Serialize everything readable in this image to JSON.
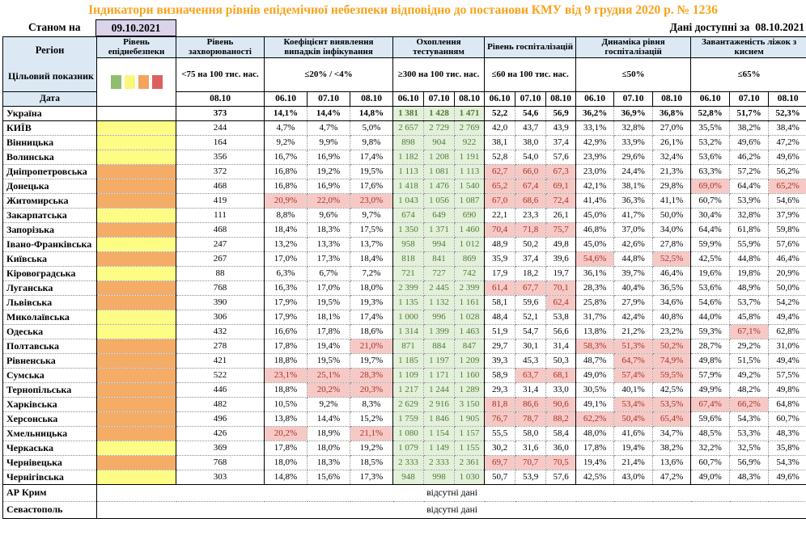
{
  "title": "Індикатори визначення рівнів епідемічної небезпеки відповідно до постанови КМУ від 9 грудня 2020 р. № 1236",
  "as_of_label": "Станом на",
  "as_of_date": "09.10.2021",
  "available_label": "Дані доступні за",
  "available_date": "08.10.2021",
  "colors": {
    "header_bg": "#DCE9F5",
    "title_color": "#F9A21B",
    "level_yellow": "#FDFC84",
    "level_orange": "#F4AC66",
    "green_bg": "#E3F0DA",
    "green_text": "#4E7A35",
    "red_bg": "#F6C9C6",
    "red_text": "#A93226",
    "date_box_bg": "#DAD3EA",
    "legend": [
      "#8FBE70",
      "#FAF77D",
      "#F2A45C",
      "#DE5F5F"
    ]
  },
  "header": {
    "region_label": "Регіон",
    "target_label": "Цільовий показник",
    "date_label": "Дата",
    "level_title": "Рівень епіднебезпеки",
    "groups": [
      {
        "title": "Рівень захворюваності",
        "target": "<75 на 100 тис. нас.",
        "dates": [
          "08.10"
        ]
      },
      {
        "title": "Коефіцієнт виявлення випадків інфікування",
        "target": "≤20% / <4%",
        "dates": [
          "06.10",
          "07.10",
          "08.10"
        ]
      },
      {
        "title": "Охоплення тестуванням",
        "target": "≥300 на 100 тис. нас.",
        "dates": [
          "06.10",
          "07.10",
          "08.10"
        ]
      },
      {
        "title": "Рівень госпіталізацій",
        "target": "≤60 на 100 тис. нас.",
        "dates": [
          "06.10",
          "07.10",
          "08.10"
        ]
      },
      {
        "title": "Динаміка рівня госпіталізацій",
        "target": "≤50%",
        "dates": [
          "06.10",
          "07.10",
          "08.10"
        ]
      },
      {
        "title": "Завантаженість ліжок з киснем",
        "target": "≤65%",
        "dates": [
          "06.10",
          "07.10",
          "08.10"
        ]
      }
    ]
  },
  "rows": [
    {
      "region": "Україна",
      "level": null,
      "bold": true,
      "incidence": "373",
      "detection": [
        "14,1%",
        "14,4%",
        "14,8%"
      ],
      "testing": [
        "1 381",
        "1 428",
        "1 471"
      ],
      "hosp": [
        "52,2",
        "54,6",
        "56,9"
      ],
      "dynamics": [
        "36,2%",
        "36,9%",
        "36,8%"
      ],
      "beds": [
        "52,8%",
        "51,7%",
        "52,3%"
      ]
    },
    {
      "region": "КИЇВ",
      "level": "yellow",
      "incidence": "244",
      "detection": [
        "4,7%",
        "4,7%",
        "5,0%"
      ],
      "testing": [
        "2 657",
        "2 729",
        "2 769"
      ],
      "hosp": [
        "42,0",
        "43,7",
        "43,9"
      ],
      "dynamics": [
        "33,1%",
        "32,8%",
        "27,0%"
      ],
      "beds": [
        "35,5%",
        "38,2%",
        "38,4%"
      ]
    },
    {
      "region": "Вінницька",
      "level": "yellow",
      "incidence": "164",
      "detection": [
        "9,2%",
        "9,9%",
        "9,8%"
      ],
      "testing": [
        "898",
        "904",
        "922"
      ],
      "hosp": [
        "38,1",
        "38,0",
        "37,4"
      ],
      "dynamics": [
        "42,9%",
        "33,9%",
        "26,1%"
      ],
      "beds": [
        "53,2%",
        "49,6%",
        "47,2%"
      ]
    },
    {
      "region": "Волинська",
      "level": "yellow",
      "incidence": "356",
      "detection": [
        "16,7%",
        "16,9%",
        "17,4%"
      ],
      "testing": [
        "1 182",
        "1 208",
        "1 191"
      ],
      "hosp": [
        "52,8",
        "54,0",
        "57,6"
      ],
      "dynamics": [
        "23,9%",
        "29,6%",
        "32,4%"
      ],
      "beds": [
        "53,6%",
        "46,2%",
        "49,6%"
      ]
    },
    {
      "region": "Дніпропетровська",
      "level": "orange",
      "incidence": "372",
      "detection": [
        "16,8%",
        "19,2%",
        "19,5%"
      ],
      "testing": [
        "1 113",
        "1 081",
        "1 113"
      ],
      "hosp": [
        "62,7",
        "66,0",
        "67,3"
      ],
      "hosp_red": [
        1,
        1,
        1
      ],
      "dynamics": [
        "23,0%",
        "24,4%",
        "21,3%"
      ],
      "beds": [
        "63,3%",
        "57,2%",
        "56,2%"
      ]
    },
    {
      "region": "Донецька",
      "level": "orange",
      "incidence": "468",
      "detection": [
        "16,8%",
        "16,9%",
        "17,6%"
      ],
      "testing": [
        "1 418",
        "1 476",
        "1 540"
      ],
      "hosp": [
        "65,2",
        "67,4",
        "69,1"
      ],
      "hosp_red": [
        1,
        1,
        1
      ],
      "dynamics": [
        "42,1%",
        "38,1%",
        "29,8%"
      ],
      "beds": [
        "69,0%",
        "64,4%",
        "65,2%"
      ],
      "beds_red": [
        1,
        0,
        1
      ]
    },
    {
      "region": "Житомирська",
      "level": "orange",
      "incidence": "419",
      "detection": [
        "20,9%",
        "22,0%",
        "23,0%"
      ],
      "detection_red": [
        1,
        1,
        1
      ],
      "testing": [
        "1 043",
        "1 056",
        "1 087"
      ],
      "hosp": [
        "67,0",
        "68,6",
        "72,4"
      ],
      "hosp_red": [
        1,
        1,
        1
      ],
      "dynamics": [
        "41,4%",
        "36,3%",
        "41,1%"
      ],
      "beds": [
        "60,7%",
        "53,9%",
        "54,6%"
      ]
    },
    {
      "region": "Закарпатська",
      "level": "yellow",
      "incidence": "111",
      "detection": [
        "8,8%",
        "9,6%",
        "9,7%"
      ],
      "testing": [
        "674",
        "649",
        "690"
      ],
      "hosp": [
        "22,1",
        "23,3",
        "26,1"
      ],
      "dynamics": [
        "45,0%",
        "41,7%",
        "50,0%"
      ],
      "beds": [
        "30,4%",
        "32,8%",
        "37,9%"
      ]
    },
    {
      "region": "Запорізька",
      "level": "orange",
      "incidence": "468",
      "detection": [
        "18,4%",
        "18,3%",
        "17,5%"
      ],
      "testing": [
        "1 350",
        "1 371",
        "1 460"
      ],
      "hosp": [
        "70,4",
        "71,8",
        "75,7"
      ],
      "hosp_red": [
        1,
        1,
        1
      ],
      "dynamics": [
        "46,8%",
        "37,0%",
        "34,0%"
      ],
      "beds": [
        "64,4%",
        "61,8%",
        "59,8%"
      ]
    },
    {
      "region": "Івано-Франківська",
      "level": "yellow",
      "tall": true,
      "incidence": "247",
      "detection": [
        "13,2%",
        "13,3%",
        "13,7%"
      ],
      "testing": [
        "958",
        "994",
        "1 012"
      ],
      "hosp": [
        "48,9",
        "50,2",
        "49,8"
      ],
      "dynamics": [
        "45,0%",
        "42,6%",
        "27,8%"
      ],
      "beds": [
        "59,9%",
        "55,9%",
        "57,6%"
      ]
    },
    {
      "region": "Київська",
      "level": "orange",
      "incidence": "267",
      "detection": [
        "17,0%",
        "17,3%",
        "18,4%"
      ],
      "testing": [
        "818",
        "841",
        "869"
      ],
      "hosp": [
        "35,9",
        "37,4",
        "39,6"
      ],
      "dynamics": [
        "54,6%",
        "44,8%",
        "52,5%"
      ],
      "dynamics_red": [
        1,
        0,
        1
      ],
      "beds": [
        "42,5%",
        "44,8%",
        "46,4%"
      ]
    },
    {
      "region": "Кіровоградська",
      "level": "yellow",
      "incidence": "88",
      "detection": [
        "6,3%",
        "6,7%",
        "7,2%"
      ],
      "testing": [
        "721",
        "727",
        "742"
      ],
      "hosp": [
        "17,9",
        "18,2",
        "19,7"
      ],
      "dynamics": [
        "36,1%",
        "39,7%",
        "46,4%"
      ],
      "beds": [
        "19,6%",
        "19,8%",
        "20,9%"
      ]
    },
    {
      "region": "Луганська",
      "level": "orange",
      "incidence": "768",
      "detection": [
        "16,3%",
        "17,0%",
        "18,0%"
      ],
      "testing": [
        "2 399",
        "2 445",
        "2 399"
      ],
      "hosp": [
        "61,4",
        "67,7",
        "70,1"
      ],
      "hosp_red": [
        1,
        1,
        1
      ],
      "dynamics": [
        "28,3%",
        "40,4%",
        "36,5%"
      ],
      "beds": [
        "53,6%",
        "48,9%",
        "50,0%"
      ]
    },
    {
      "region": "Львівська",
      "level": "orange",
      "incidence": "390",
      "detection": [
        "17,9%",
        "19,5%",
        "19,3%"
      ],
      "testing": [
        "1 135",
        "1 132",
        "1 161"
      ],
      "hosp": [
        "58,1",
        "59,6",
        "62,4"
      ],
      "hosp_red": [
        0,
        0,
        1
      ],
      "dynamics": [
        "25,8%",
        "27,9%",
        "34,6%"
      ],
      "beds": [
        "54,6%",
        "53,7%",
        "54,2%"
      ]
    },
    {
      "region": "Миколаївська",
      "level": "yellow",
      "incidence": "306",
      "detection": [
        "17,9%",
        "18,1%",
        "17,4%"
      ],
      "testing": [
        "1 000",
        "996",
        "1 028"
      ],
      "hosp": [
        "48,4",
        "52,1",
        "53,8"
      ],
      "dynamics": [
        "31,7%",
        "42,4%",
        "40,8%"
      ],
      "beds": [
        "44,0%",
        "45,8%",
        "49,4%"
      ]
    },
    {
      "region": "Одеська",
      "level": "yellow",
      "incidence": "432",
      "detection": [
        "16,6%",
        "17,8%",
        "18,6%"
      ],
      "testing": [
        "1 314",
        "1 399",
        "1 463"
      ],
      "hosp": [
        "51,9",
        "54,7",
        "56,6"
      ],
      "dynamics": [
        "13,8%",
        "21,2%",
        "23,2%"
      ],
      "beds": [
        "59,3%",
        "67,1%",
        "62,8%"
      ],
      "beds_red": [
        0,
        1,
        0
      ]
    },
    {
      "region": "Полтавська",
      "level": "orange",
      "incidence": "278",
      "detection": [
        "17,8%",
        "19,4%",
        "21,0%"
      ],
      "detection_red": [
        0,
        0,
        1
      ],
      "testing": [
        "871",
        "884",
        "847"
      ],
      "hosp": [
        "29,7",
        "30,1",
        "31,4"
      ],
      "dynamics": [
        "58,3%",
        "51,3%",
        "50,2%"
      ],
      "dynamics_red": [
        1,
        1,
        1
      ],
      "beds": [
        "28,7%",
        "29,2%",
        "31,0%"
      ]
    },
    {
      "region": "Рівненська",
      "level": "orange",
      "incidence": "421",
      "detection": [
        "18,8%",
        "19,5%",
        "19,7%"
      ],
      "testing": [
        "1 185",
        "1 197",
        "1 209"
      ],
      "hosp": [
        "39,3",
        "45,3",
        "50,3"
      ],
      "dynamics": [
        "48,7%",
        "64,7%",
        "74,9%"
      ],
      "dynamics_red": [
        0,
        1,
        1
      ],
      "beds": [
        "49,8%",
        "51,5%",
        "49,4%"
      ]
    },
    {
      "region": "Сумська",
      "level": "orange",
      "incidence": "522",
      "detection": [
        "23,1%",
        "25,1%",
        "28,3%"
      ],
      "detection_red": [
        1,
        1,
        1
      ],
      "testing": [
        "1 109",
        "1 171",
        "1 160"
      ],
      "hosp": [
        "58,9",
        "63,7",
        "68,1"
      ],
      "hosp_red": [
        0,
        1,
        1
      ],
      "dynamics": [
        "49,0%",
        "57,4%",
        "59,5%"
      ],
      "dynamics_red": [
        0,
        1,
        1
      ],
      "beds": [
        "57,9%",
        "49,2%",
        "57,5%"
      ]
    },
    {
      "region": "Тернопільська",
      "level": "orange",
      "incidence": "446",
      "detection": [
        "18,8%",
        "20,2%",
        "20,3%"
      ],
      "detection_red": [
        0,
        1,
        1
      ],
      "testing": [
        "1 217",
        "1 244",
        "1 289"
      ],
      "hosp": [
        "29,3",
        "31,4",
        "33,0"
      ],
      "dynamics": [
        "30,5%",
        "40,1%",
        "42,5%"
      ],
      "beds": [
        "49,9%",
        "48,2%",
        "49,8%"
      ]
    },
    {
      "region": "Харківська",
      "level": "orange",
      "incidence": "482",
      "detection": [
        "10,5%",
        "9,2%",
        "8,3%"
      ],
      "testing": [
        "2 629",
        "2 916",
        "3 150"
      ],
      "hosp": [
        "81,8",
        "86,6",
        "90,6"
      ],
      "hosp_red": [
        1,
        1,
        1
      ],
      "dynamics": [
        "49,1%",
        "53,4%",
        "53,5%"
      ],
      "dynamics_red": [
        0,
        1,
        1
      ],
      "beds": [
        "67,4%",
        "66,2%",
        "64,8%"
      ],
      "beds_red": [
        1,
        1,
        0
      ]
    },
    {
      "region": "Херсонська",
      "level": "orange",
      "incidence": "496",
      "detection": [
        "13,8%",
        "14,4%",
        "15,2%"
      ],
      "testing": [
        "1 759",
        "1 846",
        "1 905"
      ],
      "hosp": [
        "76,7",
        "78,7",
        "88,2"
      ],
      "hosp_red": [
        1,
        1,
        1
      ],
      "dynamics": [
        "62,2%",
        "50,4%",
        "65,4%"
      ],
      "dynamics_red": [
        1,
        1,
        1
      ],
      "beds": [
        "59,6%",
        "54,3%",
        "60,7%"
      ]
    },
    {
      "region": "Хмельницька",
      "level": "orange",
      "incidence": "426",
      "detection": [
        "20,2%",
        "18,9%",
        "21,1%"
      ],
      "detection_red": [
        1,
        0,
        1
      ],
      "testing": [
        "1 080",
        "1 154",
        "1 157"
      ],
      "hosp": [
        "55,5",
        "58,0",
        "58,4"
      ],
      "dynamics": [
        "48,0%",
        "41,6%",
        "34,7%"
      ],
      "beds": [
        "48,5%",
        "53,3%",
        "48,3%"
      ]
    },
    {
      "region": "Черкаська",
      "level": "yellow",
      "incidence": "369",
      "detection": [
        "17,8%",
        "18,0%",
        "19,2%"
      ],
      "testing": [
        "1 079",
        "1 149",
        "1 155"
      ],
      "hosp": [
        "30,2",
        "31,6",
        "36,0"
      ],
      "dynamics": [
        "17,8%",
        "19,4%",
        "38,2%"
      ],
      "beds": [
        "32,2%",
        "32,5%",
        "35,8%"
      ]
    },
    {
      "region": "Чернівецька",
      "level": "orange",
      "incidence": "768",
      "detection": [
        "18,0%",
        "18,3%",
        "18,5%"
      ],
      "testing": [
        "2 333",
        "2 333",
        "2 361"
      ],
      "hosp": [
        "69,7",
        "70,7",
        "70,5"
      ],
      "hosp_red": [
        1,
        1,
        1
      ],
      "dynamics": [
        "19,4%",
        "21,4%",
        "13,6%"
      ],
      "beds": [
        "60,7%",
        "56,9%",
        "54,3%"
      ]
    },
    {
      "region": "Чернігівська",
      "level": "yellow",
      "incidence": "303",
      "detection": [
        "14,8%",
        "15,6%",
        "17,3%"
      ],
      "testing": [
        "948",
        "998",
        "1 030"
      ],
      "hosp": [
        "50,7",
        "53,9",
        "57,6"
      ],
      "dynamics": [
        "42,5%",
        "43,0%",
        "47,2%"
      ],
      "beds": [
        "49,0%",
        "48,3%",
        "49,6%"
      ]
    }
  ],
  "no_data_rows": [
    {
      "region": "АР Крим",
      "text": "відсутні дані"
    },
    {
      "region": "Севастополь",
      "text": "відсутні дані"
    }
  ]
}
